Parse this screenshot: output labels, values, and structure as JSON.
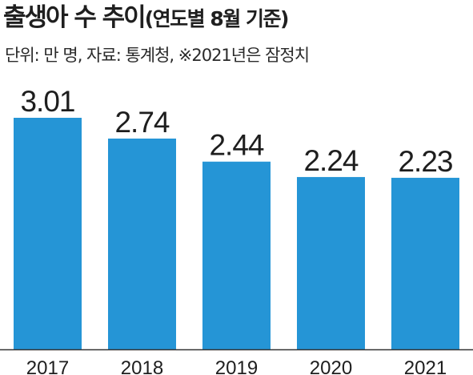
{
  "chart_data": {
    "type": "bar",
    "title": "출생아 수 추이",
    "title_note": "(연도별 8월 기준)",
    "subtitle": "단위: 만 명, 자료: 통계청, ※2021년은 잠정치",
    "categories": [
      "2017",
      "2018",
      "2019",
      "2020",
      "2021"
    ],
    "values": [
      3.01,
      2.74,
      2.44,
      2.24,
      2.23
    ],
    "value_labels": [
      "3.01",
      "2.74",
      "2.44",
      "2.24",
      "2.23"
    ],
    "xlabel": "",
    "ylabel": "",
    "ylim": [
      0,
      3.01
    ],
    "grid": false,
    "legend": "none",
    "colors": {
      "bar": "#2595d6",
      "axis": "#333333",
      "text": "#1e1e1e"
    }
  }
}
